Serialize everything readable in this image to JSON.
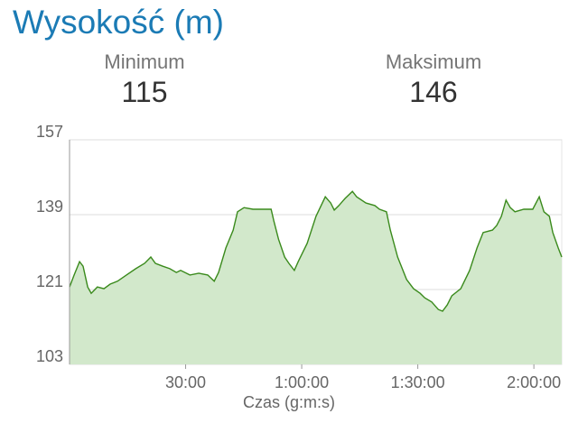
{
  "header": {
    "title": "Wysokość (m)",
    "stats": [
      {
        "label": "Minimum",
        "value": 115
      },
      {
        "label": "Maksimum",
        "value": 146
      }
    ]
  },
  "chart_data": {
    "type": "area",
    "x_label": "Czas (g:m:s)",
    "x": [
      0,
      1.2,
      2.6,
      3.5,
      4.7,
      5.6,
      7.2,
      8.9,
      10.5,
      12.4,
      14.7,
      17.1,
      19.4,
      21.0,
      22.2,
      24.1,
      25.9,
      27.6,
      28.7,
      31.1,
      33.4,
      35.7,
      37.4,
      38.5,
      40.4,
      42.3,
      43.4,
      45.1,
      47.4,
      49.7,
      52.1,
      52.8,
      54.0,
      55.6,
      56.7,
      58.1,
      59.1,
      61.4,
      63.7,
      66.1,
      67.5,
      68.4,
      69.6,
      71.2,
      73.1,
      74.2,
      76.6,
      78.9,
      80.1,
      81.9,
      82.9,
      84.8,
      87.1,
      88.9,
      90.6,
      91.8,
      93.6,
      95.3,
      96.4,
      97.6,
      98.8,
      101.1,
      103.4,
      105.3,
      106.9,
      109.3,
      110.4,
      111.6,
      112.8,
      113.9,
      115.1,
      117.4,
      119.7,
      121.4,
      122.6,
      124.0,
      124.9,
      126.3,
      127.2
    ],
    "series": [
      {
        "name": "Wysokość",
        "color": "#3a8a1c",
        "fill": "#d2e8cb",
        "values": [
          121.6,
          124.5,
          127.7,
          126.6,
          121.6,
          120.1,
          121.6,
          121.2,
          122.3,
          123.0,
          124.5,
          126.0,
          127.3,
          128.8,
          127.3,
          126.6,
          126.0,
          125.1,
          125.6,
          124.5,
          124.9,
          124.5,
          123.0,
          125.1,
          131.0,
          135.3,
          139.7,
          140.7,
          140.3,
          140.3,
          140.3,
          137.5,
          133.1,
          128.8,
          127.3,
          125.6,
          127.7,
          132.1,
          138.6,
          143.3,
          141.8,
          140.1,
          141.2,
          142.9,
          144.6,
          143.3,
          141.8,
          141.2,
          140.3,
          139.7,
          135.3,
          128.8,
          123.4,
          121.2,
          120.1,
          119.0,
          118.0,
          116.2,
          115.8,
          117.3,
          119.5,
          121.2,
          125.6,
          131.0,
          134.7,
          135.3,
          136.4,
          138.6,
          142.5,
          140.7,
          139.7,
          140.3,
          140.3,
          143.3,
          139.7,
          138.6,
          134.7,
          131.0,
          128.8
        ]
      }
    ],
    "xlim": [
      0,
      127.2
    ],
    "xticks": [
      {
        "value": 30,
        "label": "30:00"
      },
      {
        "value": 60,
        "label": "1:00:00"
      },
      {
        "value": 90,
        "label": "1:30:00"
      },
      {
        "value": 120,
        "label": "2:00:00"
      }
    ],
    "ylim": [
      103,
      157
    ],
    "yticks": [
      103,
      121,
      139,
      157
    ],
    "grid": true
  }
}
